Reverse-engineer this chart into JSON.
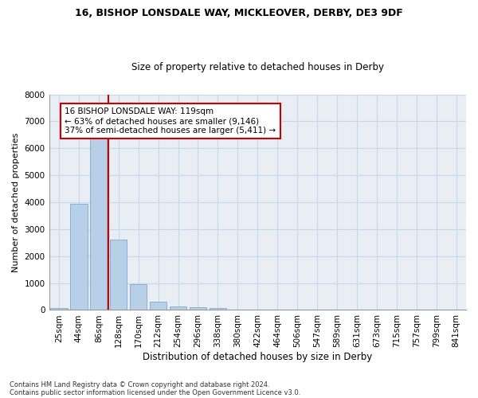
{
  "title1": "16, BISHOP LONSDALE WAY, MICKLEOVER, DERBY, DE3 9DF",
  "title2": "Size of property relative to detached houses in Derby",
  "xlabel": "Distribution of detached houses by size in Derby",
  "ylabel": "Number of detached properties",
  "bar_labels": [
    "25sqm",
    "44sqm",
    "86sqm",
    "128sqm",
    "170sqm",
    "212sqm",
    "254sqm",
    "296sqm",
    "338sqm",
    "380sqm",
    "422sqm",
    "464sqm",
    "506sqm",
    "547sqm",
    "589sqm",
    "631sqm",
    "673sqm",
    "715sqm",
    "757sqm",
    "799sqm",
    "841sqm"
  ],
  "bar_values": [
    75,
    3950,
    6550,
    2600,
    950,
    310,
    130,
    100,
    80,
    0,
    0,
    0,
    0,
    0,
    0,
    0,
    0,
    0,
    0,
    0,
    0
  ],
  "bar_color": "#b8cfe8",
  "bar_edgecolor": "#8ab0d0",
  "vline_color": "#cc0000",
  "annotation_text": "16 BISHOP LONSDALE WAY: 119sqm\n← 63% of detached houses are smaller (9,146)\n37% of semi-detached houses are larger (5,411) →",
  "ylim": [
    0,
    8000
  ],
  "yticks": [
    0,
    1000,
    2000,
    3000,
    4000,
    5000,
    6000,
    7000,
    8000
  ],
  "grid_color": "#c8d8e8",
  "bg_color": "#e8eef4",
  "footer1": "Contains HM Land Registry data © Crown copyright and database right 2024.",
  "footer2": "Contains public sector information licensed under the Open Government Licence v3.0.",
  "title1_fontsize": 9,
  "title2_fontsize": 8.5,
  "xlabel_fontsize": 8.5,
  "ylabel_fontsize": 8,
  "annotation_fontsize": 7.5,
  "tick_fontsize": 7.5
}
